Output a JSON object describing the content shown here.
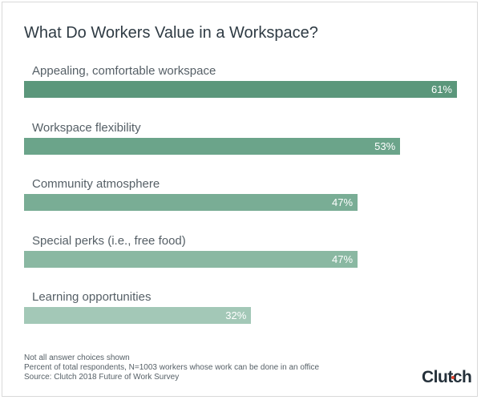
{
  "chart_data": {
    "type": "bar",
    "orientation": "horizontal",
    "title": "What Do Workers Value in a Workspace?",
    "categories": [
      "Appealing, comfortable workspace",
      "Workspace flexibility",
      "Community atmosphere",
      "Special perks (i.e., free food)",
      "Learning opportunities"
    ],
    "values": [
      61,
      53,
      47,
      47,
      32
    ],
    "value_labels": [
      "61%",
      "53%",
      "47%",
      "47%",
      "32%"
    ],
    "colors": [
      "#5b977b",
      "#6ba48a",
      "#79ad95",
      "#8ab8a2",
      "#a3c8b7"
    ],
    "xlim": [
      0,
      61
    ],
    "grid": false
  },
  "footnotes": [
    "Not all answer choices shown",
    "Percent of total respondents, N=1003 workers whose work can be done in an office",
    "Source: Clutch 2018 Future of Work Survey"
  ],
  "logo": "Clutch"
}
